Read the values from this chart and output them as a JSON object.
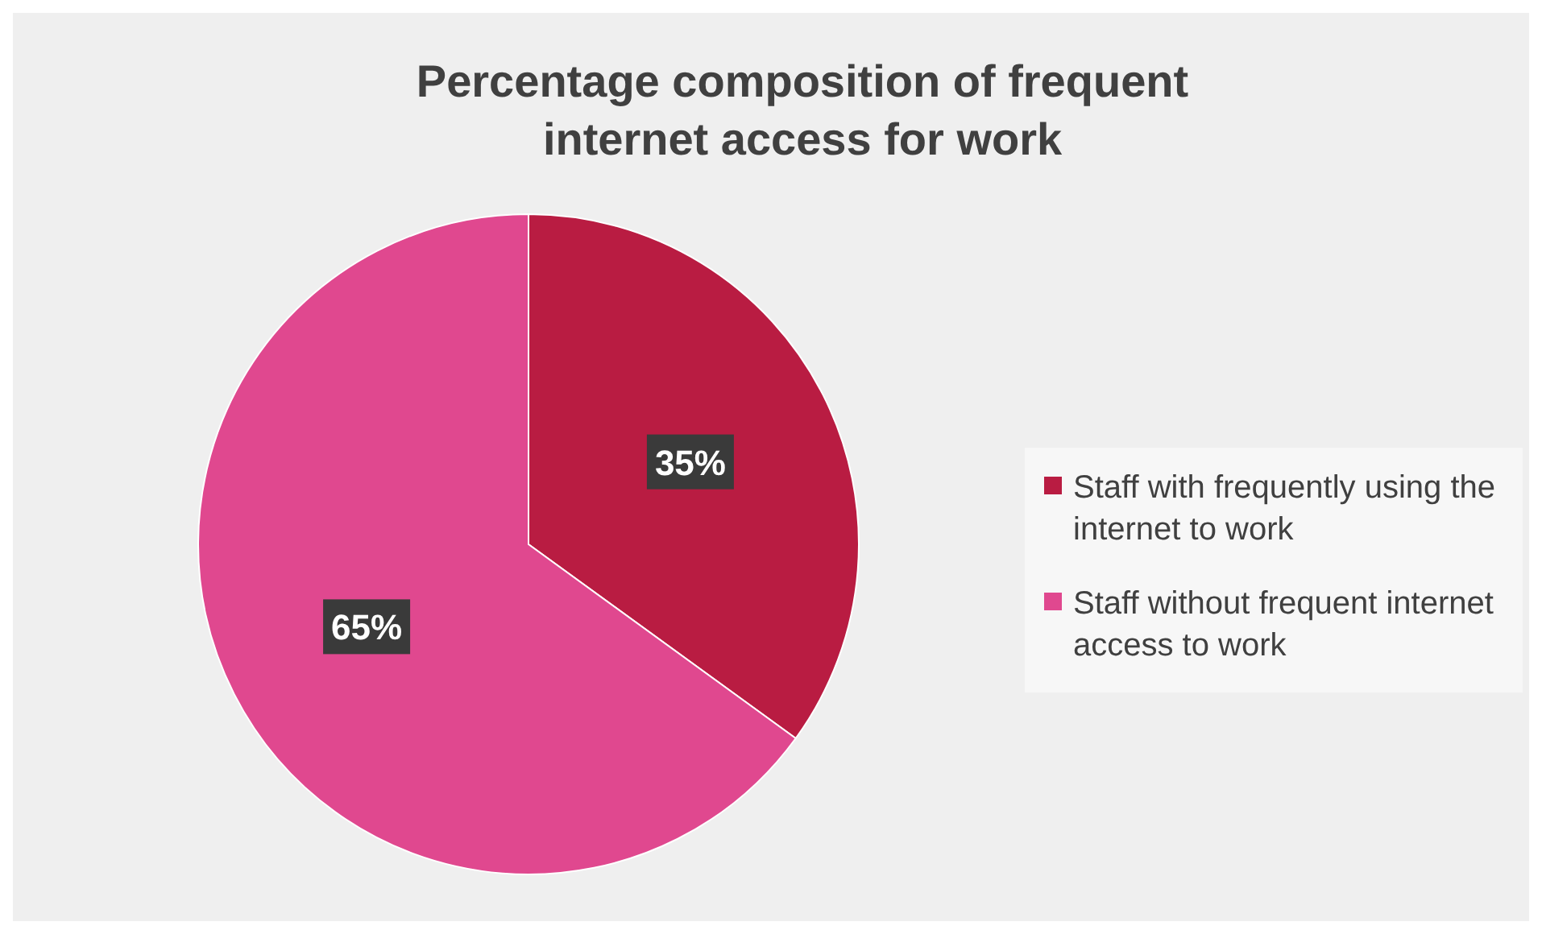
{
  "chart_data": {
    "type": "pie",
    "title": "Percentage composition of frequent internet access for work",
    "categories": [
      "Staff with frequently using the internet to work",
      "Staff without frequent internet access to work"
    ],
    "values": [
      35,
      65
    ],
    "colors": [
      "#b91c42",
      "#e0488f"
    ],
    "value_labels": [
      "35%",
      "65%"
    ],
    "legend": "right"
  }
}
